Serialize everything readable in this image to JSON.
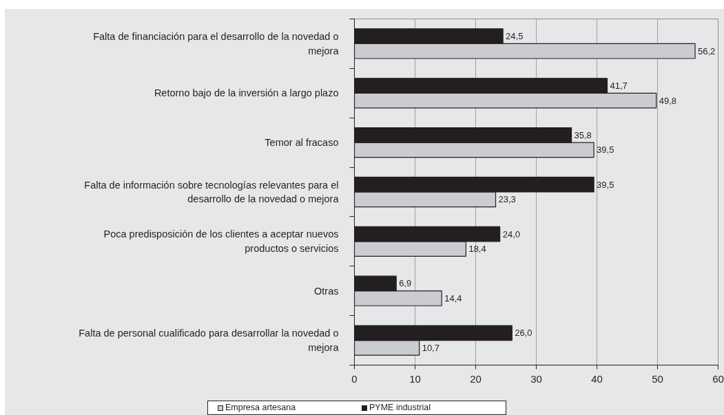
{
  "chart_data": {
    "type": "bar",
    "orientation": "horizontal",
    "categories": [
      "Falta de financiación para el desarrollo de la novedad o mejora",
      "Retorno bajo de la inversión a largo plazo",
      "Temor al fracaso",
      "Falta de información sobre tecnologías relevantes para el desarrollo de la novedad o mejora",
      "Poca predisposición de los clientes a aceptar nuevos productos o servicios",
      "Otras",
      "Falta de personal cualificado para desarrollar la novedad o mejora"
    ],
    "series": [
      {
        "name": "Empresa artesana",
        "color": "#cbcccf",
        "values": [
          56.2,
          49.8,
          39.5,
          23.3,
          18.4,
          14.4,
          10.7
        ],
        "value_labels": [
          "56,2",
          "49,8",
          "39,5",
          "23,3",
          "18,4",
          "14,4",
          "10,7"
        ]
      },
      {
        "name": "PYME industrial",
        "color": "#231f20",
        "values": [
          24.5,
          41.7,
          35.8,
          39.5,
          24.0,
          6.9,
          26.0
        ],
        "value_labels": [
          "24,5",
          "41,7",
          "35,8",
          "39,5",
          "24,0",
          "6,9",
          "26,0"
        ]
      }
    ],
    "xlim": [
      0,
      60
    ],
    "xticks": [
      0,
      10,
      20,
      30,
      40,
      50,
      60
    ],
    "grid": "x",
    "legend": "bottom"
  }
}
